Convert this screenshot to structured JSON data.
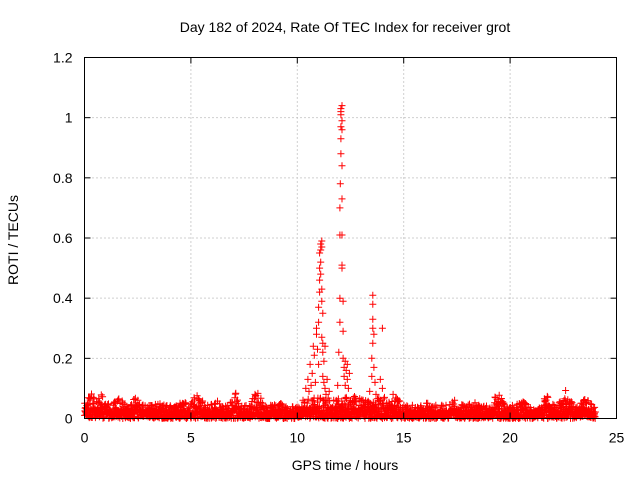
{
  "chart_data": {
    "type": "scatter",
    "title": "Day 182 of 2024, Rate Of TEC Index for receiver grot",
    "xlabel": "GPS time / hours",
    "ylabel": "ROTI / TECUs",
    "xlim": [
      0,
      25
    ],
    "ylim": [
      0,
      1.2
    ],
    "xticks": [
      0,
      5,
      10,
      15,
      20,
      25
    ],
    "xtick_labels": [
      "0",
      "5",
      "10",
      "15",
      "20",
      "25"
    ],
    "yticks": [
      0,
      0.2,
      0.4,
      0.6,
      0.8,
      1.0,
      1.2
    ],
    "ytick_labels": [
      "0",
      "0.2",
      "0.4",
      "0.6",
      "0.8",
      "1",
      "1.2"
    ],
    "grid": true,
    "marker": "plus",
    "colors": {
      "marker": "#ff0000",
      "axis": "#000000",
      "grid": "#a0a0a0"
    },
    "series": [
      {
        "name": "ROTI",
        "baseline": {
          "x_start": 0.0,
          "x_end": 24.0,
          "step": 0.02,
          "y_min": 0.0,
          "y_max": 0.045
        },
        "bumps": [
          {
            "x": 0.3,
            "y": 0.085
          },
          {
            "x": 0.8,
            "y": 0.09
          },
          {
            "x": 1.6,
            "y": 0.07
          },
          {
            "x": 2.4,
            "y": 0.075
          },
          {
            "x": 3.5,
            "y": 0.055
          },
          {
            "x": 4.6,
            "y": 0.06
          },
          {
            "x": 5.3,
            "y": 0.09
          },
          {
            "x": 6.2,
            "y": 0.07
          },
          {
            "x": 7.1,
            "y": 0.085
          },
          {
            "x": 8.1,
            "y": 0.1
          },
          {
            "x": 9.2,
            "y": 0.06
          },
          {
            "x": 12.6,
            "y": 0.09
          },
          {
            "x": 14.3,
            "y": 0.08
          },
          {
            "x": 16.3,
            "y": 0.07
          },
          {
            "x": 17.4,
            "y": 0.065
          },
          {
            "x": 18.2,
            "y": 0.06
          },
          {
            "x": 19.4,
            "y": 0.09
          },
          {
            "x": 20.6,
            "y": 0.06
          },
          {
            "x": 21.7,
            "y": 0.085
          },
          {
            "x": 22.6,
            "y": 0.12
          },
          {
            "x": 23.5,
            "y": 0.07
          }
        ],
        "points": [
          [
            10.4,
            0.1
          ],
          [
            10.5,
            0.13
          ],
          [
            10.55,
            0.09
          ],
          [
            10.6,
            0.18
          ],
          [
            10.65,
            0.11
          ],
          [
            10.7,
            0.15
          ],
          [
            10.75,
            0.24
          ],
          [
            10.8,
            0.21
          ],
          [
            10.85,
            0.12
          ],
          [
            10.9,
            0.28
          ],
          [
            10.9,
            0.3
          ],
          [
            10.95,
            0.23
          ],
          [
            11.0,
            0.32
          ],
          [
            11.0,
            0.37
          ],
          [
            11.0,
            0.18
          ],
          [
            11.05,
            0.42
          ],
          [
            11.05,
            0.46
          ],
          [
            11.05,
            0.5
          ],
          [
            11.05,
            0.55
          ],
          [
            11.1,
            0.58
          ],
          [
            11.1,
            0.56
          ],
          [
            11.1,
            0.52
          ],
          [
            11.1,
            0.48
          ],
          [
            11.15,
            0.59
          ],
          [
            11.15,
            0.57
          ],
          [
            11.15,
            0.43
          ],
          [
            11.15,
            0.39
          ],
          [
            11.15,
            0.27
          ],
          [
            11.2,
            0.35
          ],
          [
            11.2,
            0.25
          ],
          [
            11.2,
            0.22
          ],
          [
            11.2,
            0.14
          ],
          [
            11.25,
            0.12
          ],
          [
            11.25,
            0.19
          ],
          [
            11.3,
            0.24
          ],
          [
            11.3,
            0.1
          ],
          [
            11.35,
            0.08
          ],
          [
            11.4,
            0.13
          ],
          [
            11.5,
            0.09
          ],
          [
            11.9,
            0.11
          ],
          [
            11.95,
            0.22
          ],
          [
            12.0,
            0.32
          ],
          [
            12.0,
            0.4
          ],
          [
            12.0,
            0.61
          ],
          [
            12.0,
            0.7
          ],
          [
            12.02,
            0.78
          ],
          [
            12.05,
            0.88
          ],
          [
            12.05,
            0.93
          ],
          [
            12.05,
            0.97
          ],
          [
            12.05,
            1.01
          ],
          [
            12.05,
            1.02
          ],
          [
            12.05,
            1.03
          ],
          [
            12.1,
            1.04
          ],
          [
            12.1,
            0.99
          ],
          [
            12.1,
            0.96
          ],
          [
            12.1,
            0.84
          ],
          [
            12.1,
            0.73
          ],
          [
            12.1,
            0.61
          ],
          [
            12.1,
            0.51
          ],
          [
            12.1,
            0.5
          ],
          [
            12.15,
            0.39
          ],
          [
            12.15,
            0.29
          ],
          [
            12.15,
            0.2
          ],
          [
            12.2,
            0.17
          ],
          [
            12.2,
            0.14
          ],
          [
            12.25,
            0.19
          ],
          [
            12.25,
            0.11
          ],
          [
            12.3,
            0.16
          ],
          [
            12.3,
            0.07
          ],
          [
            12.35,
            0.18
          ],
          [
            12.35,
            0.13
          ],
          [
            12.4,
            0.1
          ],
          [
            12.45,
            0.15
          ],
          [
            12.5,
            0.06
          ],
          [
            13.4,
            0.09
          ],
          [
            13.5,
            0.14
          ],
          [
            13.5,
            0.2
          ],
          [
            13.55,
            0.25
          ],
          [
            13.55,
            0.3
          ],
          [
            13.55,
            0.33
          ],
          [
            13.55,
            0.38
          ],
          [
            13.55,
            0.41
          ],
          [
            13.6,
            0.28
          ],
          [
            13.6,
            0.17
          ],
          [
            13.65,
            0.12
          ],
          [
            13.7,
            0.08
          ],
          [
            13.8,
            0.06
          ],
          [
            13.9,
            0.13
          ],
          [
            14.0,
            0.1
          ],
          [
            14.0,
            0.3
          ],
          [
            14.1,
            0.07
          ],
          [
            14.2,
            0.05
          ],
          [
            14.5,
            0.08
          ]
        ]
      }
    ]
  }
}
